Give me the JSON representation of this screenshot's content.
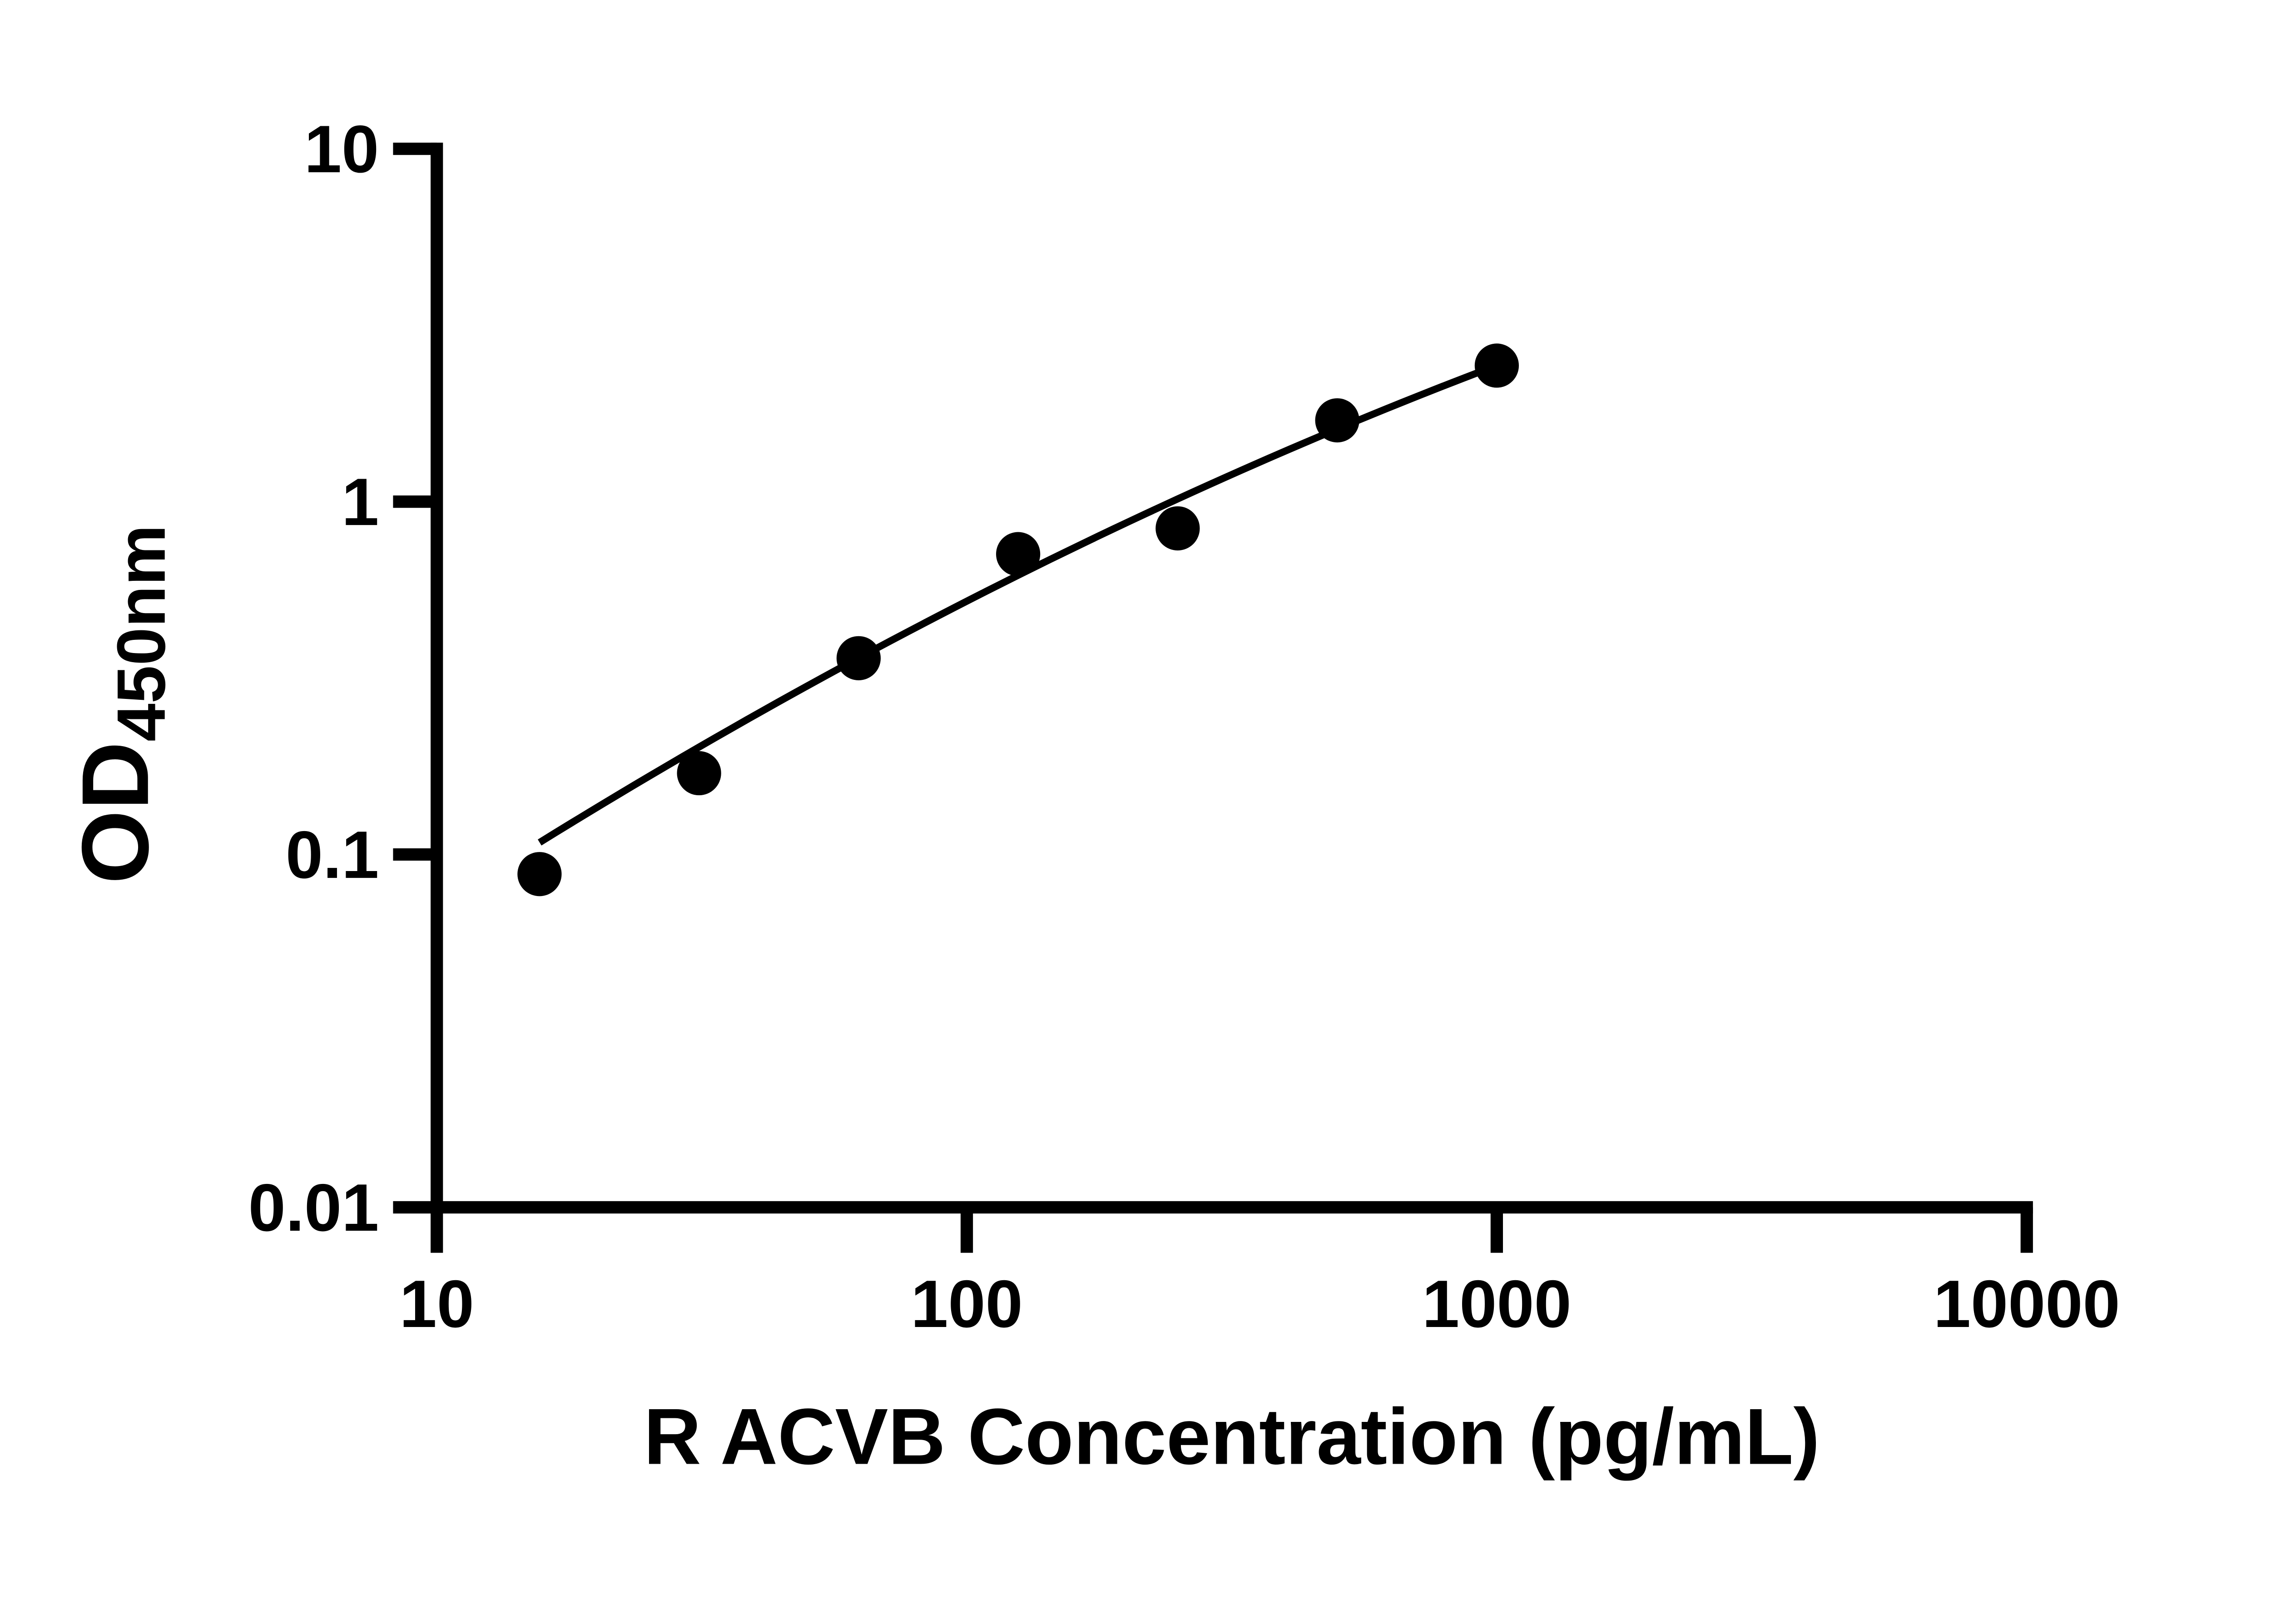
{
  "chart_data": {
    "type": "scatter",
    "title": "",
    "xlabel": "R ACVB Concentration (pg/mL)",
    "ylabel_main": "OD",
    "ylabel_sub": "450nm",
    "x_scale": "log",
    "y_scale": "log",
    "xlim": [
      10,
      10000
    ],
    "ylim": [
      0.01,
      10
    ],
    "x_ticks": [
      10,
      100,
      1000,
      10000
    ],
    "x_tick_labels": [
      "10",
      "100",
      "1000",
      "10000"
    ],
    "y_ticks": [
      0.01,
      0.1,
      1,
      10
    ],
    "y_tick_labels": [
      "0.01",
      "0.1",
      "1",
      "10"
    ],
    "grid": false,
    "legend": null,
    "colors": {
      "ink": "#000000",
      "background": "#ffffff"
    },
    "series": [
      {
        "name": "standard-curve-points",
        "marker": "filled-circle",
        "color": "#000000",
        "x": [
          15.625,
          31.25,
          62.5,
          125,
          250,
          500,
          1000
        ],
        "y": [
          0.088,
          0.17,
          0.36,
          0.71,
          0.84,
          1.7,
          2.43
        ]
      }
    ],
    "fit_line": {
      "name": "4pl-fit-curve",
      "type": "quadratic-in-loglog-space",
      "note": "log10(OD) = a + b*t + c*t*t, t = log10(conc)",
      "a": -2.2173,
      "b": 1.1672,
      "c": -0.0998,
      "t_min": 1.194,
      "t_max": 2.999,
      "color": "#000000"
    }
  }
}
